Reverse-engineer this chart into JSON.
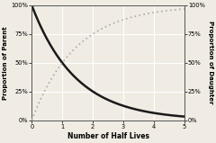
{
  "title": "",
  "xlabel": "Number of Half Lives",
  "ylabel_left": "Proportion of Parent",
  "ylabel_right": "Proportion of Daughter",
  "xlim": [
    0,
    5
  ],
  "ylim": [
    0,
    1
  ],
  "x_ticks": [
    0,
    1,
    2,
    3,
    4,
    5
  ],
  "y_ticks": [
    0,
    0.25,
    0.5,
    0.75,
    1.0
  ],
  "y_tick_labels": [
    "0%",
    "25%",
    "50%",
    "75%",
    "100%"
  ],
  "background_color": "#f0ece4",
  "plot_bg_color": "#f0ece4",
  "grid_color": "#ffffff",
  "parent_color": "#1a1a1a",
  "daughter_color": "#aaaaaa",
  "parent_linewidth": 1.8,
  "daughter_linewidth": 1.2
}
